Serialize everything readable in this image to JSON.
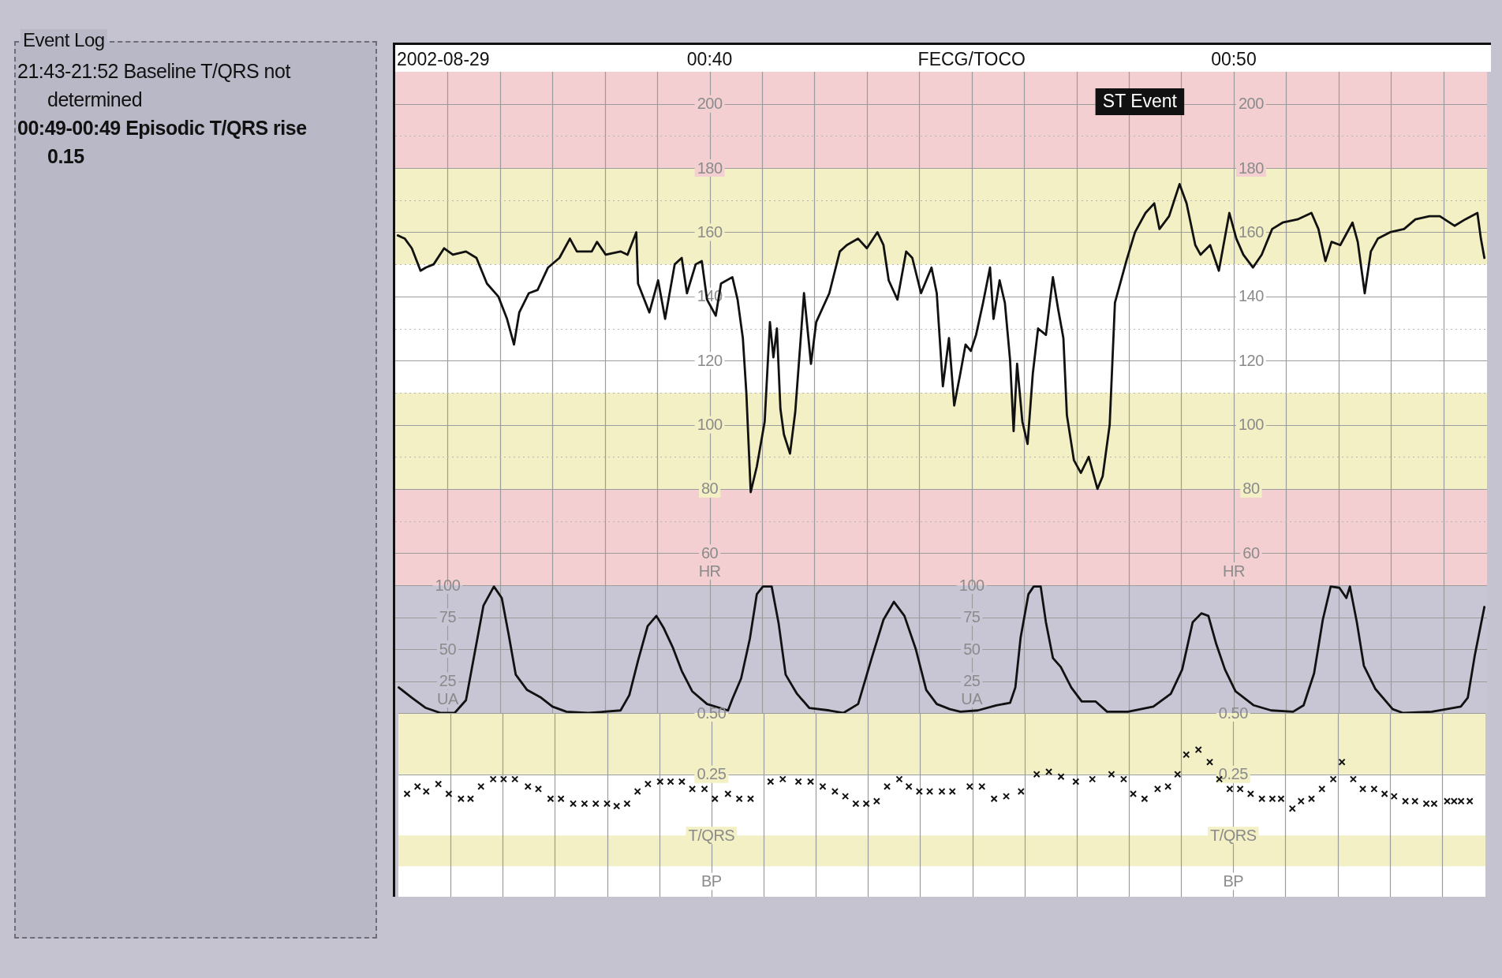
{
  "chart_data": [
    {
      "type": "other",
      "title": "Event Log",
      "annotations": [
        "21:43-21:52 Baseline T/QRS not determined",
        "00:49-00:49 Episodic T/QRS rise 0.15"
      ]
    },
    {
      "type": "line",
      "title": "FECG/TOCO",
      "ylabel": "HR",
      "annotations": [
        "2002-08-29",
        "ST Event"
      ],
      "xlim": [
        "2002-08-29T00:34",
        "2002-08-29T00:54:50"
      ],
      "xticks": [
        {
          "value": "2002-08-29T00:35",
          "label": null
        },
        {
          "value": "2002-08-29T00:36",
          "label": null
        },
        {
          "value": "2002-08-29T00:37",
          "label": null
        },
        {
          "value": "2002-08-29T00:38",
          "label": null
        },
        {
          "value": "2002-08-29T00:39",
          "label": null
        },
        {
          "value": "2002-08-29T00:40",
          "label": "00:40"
        },
        {
          "value": "2002-08-29T00:41",
          "label": null
        },
        {
          "value": "2002-08-29T00:42",
          "label": null
        },
        {
          "value": "2002-08-29T00:43",
          "label": null
        },
        {
          "value": "2002-08-29T00:44",
          "label": null
        },
        {
          "value": "2002-08-29T00:45",
          "label": null
        },
        {
          "value": "2002-08-29T00:46",
          "label": null
        },
        {
          "value": "2002-08-29T00:47",
          "label": null
        },
        {
          "value": "2002-08-29T00:48",
          "label": null
        },
        {
          "value": "2002-08-29T00:49",
          "label": null
        },
        {
          "value": "2002-08-29T00:50",
          "label": "00:50"
        },
        {
          "value": "2002-08-29T00:51",
          "label": null
        },
        {
          "value": "2002-08-29T00:52",
          "label": null
        },
        {
          "value": "2002-08-29T00:53",
          "label": null
        },
        {
          "value": "2002-08-29T00:54",
          "label": null
        }
      ],
      "ylim": [
        50,
        210
      ],
      "yticks": [
        60,
        {
          "value": 70,
          "label": null
        },
        80,
        {
          "value": 90,
          "label": null
        },
        100,
        {
          "value": 110,
          "label": null
        },
        120,
        {
          "value": 130,
          "label": null
        },
        140,
        {
          "value": 150,
          "label": null
        },
        160,
        {
          "value": 170,
          "label": null
        },
        180,
        {
          "value": 190,
          "label": null
        },
        200
      ],
      "y2lim": [
        50,
        210
      ],
      "y2ticks": [
        60,
        80,
        100,
        120,
        140,
        160,
        180,
        200
      ],
      "bands": [
        {
          "axis": "y",
          "from": 180,
          "to": 210,
          "color": "#f3cfd2"
        },
        {
          "axis": "y",
          "from": 150,
          "to": 180,
          "color": "#f2f0c4"
        },
        {
          "axis": "y",
          "from": 80,
          "to": 110,
          "color": "#f2f0c4"
        },
        {
          "axis": "y",
          "from": 50,
          "to": 80,
          "color": "#f3cfd2"
        }
      ],
      "grid": true,
      "series": [
        {
          "color": "#111111",
          "x": [
            "2002-08-29T00:34:03",
            "2002-08-29T00:34:11",
            "2002-08-29T00:34:19",
            "2002-08-29T00:34:29",
            "2002-08-29T00:34:35",
            "2002-08-29T00:34:44",
            "2002-08-29T00:34:56",
            "2002-08-29T00:35:06",
            "2002-08-29T00:35:21",
            "2002-08-29T00:35:33",
            "2002-08-29T00:35:45",
            "2002-08-29T00:35:58",
            "2002-08-29T00:36:08",
            "2002-08-29T00:36:16",
            "2002-08-29T00:36:22",
            "2002-08-29T00:36:33",
            "2002-08-29T00:36:43",
            "2002-08-29T00:36:55",
            "2002-08-29T00:37:08",
            "2002-08-29T00:37:20",
            "2002-08-29T00:37:28",
            "2002-08-29T00:37:45",
            "2002-08-29T00:37:51",
            "2002-08-29T00:38:01",
            "2002-08-29T00:38:18",
            "2002-08-29T00:38:26",
            "2002-08-29T00:38:36",
            "2002-08-29T00:38:38",
            "2002-08-29T00:38:51",
            "2002-08-29T00:39:01",
            "2002-08-29T00:39:09",
            "2002-08-29T00:39:20",
            "2002-08-29T00:39:28",
            "2002-08-29T00:39:34",
            "2002-08-29T00:39:44",
            "2002-08-29T00:39:51",
            "2002-08-29T00:39:57",
            "2002-08-29T00:40:07",
            "2002-08-29T00:40:13",
            "2002-08-29T00:40:26",
            "2002-08-29T00:40:32",
            "2002-08-29T00:40:38",
            "2002-08-29T00:40:42",
            "2002-08-29T00:40:47",
            "2002-08-29T00:40:54",
            "2002-08-29T00:41:03",
            "2002-08-29T00:41:09",
            "2002-08-29T00:41:13",
            "2002-08-29T00:41:17",
            "2002-08-29T00:41:21",
            "2002-08-29T00:41:25",
            "2002-08-29T00:41:32",
            "2002-08-29T00:41:38",
            "2002-08-29T00:41:44",
            "2002-08-29T00:41:48",
            "2002-08-29T00:41:56",
            "2002-08-29T00:42:02",
            "2002-08-29T00:42:17",
            "2002-08-29T00:42:29",
            "2002-08-29T00:42:37",
            "2002-08-29T00:42:50",
            "2002-08-29T00:43:00",
            "2002-08-29T00:43:12",
            "2002-08-29T00:43:19",
            "2002-08-29T00:43:25",
            "2002-08-29T00:43:35",
            "2002-08-29T00:43:45",
            "2002-08-29T00:43:52",
            "2002-08-29T00:44:02",
            "2002-08-29T00:44:14",
            "2002-08-29T00:44:20",
            "2002-08-29T00:44:27",
            "2002-08-29T00:44:34",
            "2002-08-29T00:44:40",
            "2002-08-29T00:44:47",
            "2002-08-29T00:44:53",
            "2002-08-29T00:44:59",
            "2002-08-29T00:45:05",
            "2002-08-29T00:45:13",
            "2002-08-29T00:45:21",
            "2002-08-29T00:45:25",
            "2002-08-29T00:45:32",
            "2002-08-29T00:45:38",
            "2002-08-29T00:45:44",
            "2002-08-29T00:45:48",
            "2002-08-29T00:45:52",
            "2002-08-29T00:45:58",
            "2002-08-29T00:46:04",
            "2002-08-29T00:46:10",
            "2002-08-29T00:46:16",
            "2002-08-29T00:46:25",
            "2002-08-29T00:46:33",
            "2002-08-29T00:46:39",
            "2002-08-29T00:46:45",
            "2002-08-29T00:46:49",
            "2002-08-29T00:46:57",
            "2002-08-29T00:47:05",
            "2002-08-29T00:47:14",
            "2002-08-29T00:47:24",
            "2002-08-29T00:47:30",
            "2002-08-29T00:47:38",
            "2002-08-29T00:47:44",
            "2002-08-29T00:47:57",
            "2002-08-29T00:48:07",
            "2002-08-29T00:48:19",
            "2002-08-29T00:48:29",
            "2002-08-29T00:48:35",
            "2002-08-29T00:48:46",
            "2002-08-29T00:48:58",
            "2002-08-29T00:49:06",
            "2002-08-29T00:49:16",
            "2002-08-29T00:49:22",
            "2002-08-29T00:49:33",
            "2002-08-29T00:49:43",
            "2002-08-29T00:49:55",
            "2002-08-29T00:50:03",
            "2002-08-29T00:50:11",
            "2002-08-29T00:50:22",
            "2002-08-29T00:50:32",
            "2002-08-29T00:50:44",
            "2002-08-29T00:50:56",
            "2002-08-29T00:51:13",
            "2002-08-29T00:51:29",
            "2002-08-29T00:51:37",
            "2002-08-29T00:51:45",
            "2002-08-29T00:51:52",
            "2002-08-29T00:52:02",
            "2002-08-29T00:52:16",
            "2002-08-29T00:52:22",
            "2002-08-29T00:52:30",
            "2002-08-29T00:52:37",
            "2002-08-29T00:52:45",
            "2002-08-29T00:52:59",
            "2002-08-29T00:53:15",
            "2002-08-29T00:53:28",
            "2002-08-29T00:53:44",
            "2002-08-29T00:53:56",
            "2002-08-29T00:54:13",
            "2002-08-29T00:54:25",
            "2002-08-29T00:54:39",
            "2002-08-29T00:54:43",
            "2002-08-29T00:54:47"
          ],
          "values": [
            159,
            158,
            155,
            148,
            149,
            150,
            155,
            153,
            154,
            152,
            144,
            140,
            133,
            125,
            135,
            141,
            142,
            149,
            152,
            158,
            154,
            154,
            157,
            153,
            154,
            153,
            160,
            144,
            135,
            145,
            133,
            150,
            152,
            141,
            150,
            151,
            139,
            134,
            144,
            146,
            139,
            127,
            110,
            79,
            87,
            101,
            132,
            121,
            130,
            105,
            97,
            91,
            104,
            126,
            141,
            119,
            132,
            141,
            154,
            156,
            158,
            155,
            160,
            156,
            145,
            139,
            154,
            152,
            141,
            149,
            141,
            112,
            127,
            106,
            116,
            125,
            123,
            128,
            138,
            149,
            133,
            145,
            138,
            120,
            98,
            119,
            101,
            94,
            116,
            130,
            128,
            146,
            136,
            127,
            103,
            89,
            85,
            90,
            80,
            84,
            100,
            138,
            151,
            160,
            166,
            169,
            161,
            165,
            175,
            169,
            156,
            153,
            156,
            148,
            166,
            158,
            153,
            149,
            153,
            161,
            163,
            164,
            166,
            161,
            151,
            157,
            156,
            163,
            157,
            141,
            154,
            158,
            160,
            161,
            164,
            165,
            165,
            162,
            164,
            166,
            158,
            152
          ]
        }
      ]
    },
    {
      "type": "line",
      "ylabel": "UA",
      "tick_labels": "y",
      "xlim": [
        "2002-08-29T00:34",
        "2002-08-29T00:54:50"
      ],
      "xticks": [
        {
          "value": "2002-08-29T00:35",
          "label": null
        },
        {
          "value": "2002-08-29T00:36",
          "label": null
        },
        {
          "value": "2002-08-29T00:37",
          "label": null
        },
        {
          "value": "2002-08-29T00:38",
          "label": null
        },
        {
          "value": "2002-08-29T00:39",
          "label": null
        },
        {
          "value": "2002-08-29T00:40",
          "label": null
        },
        {
          "value": "2002-08-29T00:41",
          "label": null
        },
        {
          "value": "2002-08-29T00:42",
          "label": null
        },
        {
          "value": "2002-08-29T00:43",
          "label": null
        },
        {
          "value": "2002-08-29T00:44",
          "label": null
        },
        {
          "value": "2002-08-29T00:45",
          "label": null
        },
        {
          "value": "2002-08-29T00:46",
          "label": null
        },
        {
          "value": "2002-08-29T00:47",
          "label": null
        },
        {
          "value": "2002-08-29T00:48",
          "label": null
        },
        {
          "value": "2002-08-29T00:49",
          "label": null
        },
        {
          "value": "2002-08-29T00:50",
          "label": null
        },
        {
          "value": "2002-08-29T00:51",
          "label": null
        },
        {
          "value": "2002-08-29T00:52",
          "label": null
        },
        {
          "value": "2002-08-29T00:53",
          "label": null
        },
        {
          "value": "2002-08-29T00:54",
          "label": null
        }
      ],
      "ylim": [
        0,
        100
      ],
      "yticks": [
        25,
        50,
        75,
        100
      ],
      "y2lim": [
        0,
        100
      ],
      "y2ticks": [
        25,
        50,
        75,
        100
      ],
      "bands": [
        {
          "axis": "y",
          "from": 0,
          "to": 100,
          "color": "#c8c5d5"
        }
      ],
      "grid": true,
      "series": [
        {
          "color": "#111111",
          "x": [
            "2002-08-29T00:34:04",
            "2002-08-29T00:34:19",
            "2002-08-29T00:34:35",
            "2002-08-29T00:34:52",
            "2002-08-29T00:35:08",
            "2002-08-29T00:35:21",
            "2002-08-29T00:35:31",
            "2002-08-29T00:35:41",
            "2002-08-29T00:35:53",
            "2002-08-29T00:36:02",
            "2002-08-29T00:36:10",
            "2002-08-29T00:36:18",
            "2002-08-29T00:36:31",
            "2002-08-29T00:36:47",
            "2002-08-29T00:37:00",
            "2002-08-29T00:37:16",
            "2002-08-29T00:37:41",
            "2002-08-29T00:38:18",
            "2002-08-29T00:38:28",
            "2002-08-29T00:38:38",
            "2002-08-29T00:38:49",
            "2002-08-29T00:38:59",
            "2002-08-29T00:39:07",
            "2002-08-29T00:39:18",
            "2002-08-29T00:39:28",
            "2002-08-29T00:39:40",
            "2002-08-29T00:39:57",
            "2002-08-29T00:40:21",
            "2002-08-29T00:40:26",
            "2002-08-29T00:40:36",
            "2002-08-29T00:40:46",
            "2002-08-29T00:40:54",
            "2002-08-29T00:41:01",
            "2002-08-29T00:41:11",
            "2002-08-29T00:41:19",
            "2002-08-29T00:41:27",
            "2002-08-29T00:41:40",
            "2002-08-29T00:41:54",
            "2002-08-29T00:42:17",
            "2002-08-29T00:42:33",
            "2002-08-29T00:42:50",
            "2002-08-29T00:43:06",
            "2002-08-29T00:43:19",
            "2002-08-29T00:43:31",
            "2002-08-29T00:43:43",
            "2002-08-29T00:43:56",
            "2002-08-29T00:44:08",
            "2002-08-29T00:44:20",
            "2002-08-29T00:44:35",
            "2002-08-29T00:44:47",
            "2002-08-29T00:45:07",
            "2002-08-29T00:45:28",
            "2002-08-29T00:45:44",
            "2002-08-29T00:45:50",
            "2002-08-29T00:45:56",
            "2002-08-29T00:46:05",
            "2002-08-29T00:46:11",
            "2002-08-29T00:46:19",
            "2002-08-29T00:46:25",
            "2002-08-29T00:46:33",
            "2002-08-29T00:46:42",
            "2002-08-29T00:46:54",
            "2002-08-29T00:47:06",
            "2002-08-29T00:47:22",
            "2002-08-29T00:47:35",
            "2002-08-29T00:47:59",
            "2002-08-29T00:48:28",
            "2002-08-29T00:48:48",
            "2002-08-29T00:49:01",
            "2002-08-29T00:49:13",
            "2002-08-29T00:49:23",
            "2002-08-29T00:49:31",
            "2002-08-29T00:49:40",
            "2002-08-29T00:49:50",
            "2002-08-29T00:50:02",
            "2002-08-29T00:50:23",
            "2002-08-29T00:50:43",
            "2002-08-29T00:51:08",
            "2002-08-29T00:51:20",
            "2002-08-29T00:51:32",
            "2002-08-29T00:51:42",
            "2002-08-29T00:51:51",
            "2002-08-29T00:52:01",
            "2002-08-29T00:52:09",
            "2002-08-29T00:52:13",
            "2002-08-29T00:52:21",
            "2002-08-29T00:52:29",
            "2002-08-29T00:52:42",
            "2002-08-29T00:53:02",
            "2002-08-29T00:53:14",
            "2002-08-29T00:53:47",
            "2002-08-29T00:54:20",
            "2002-08-29T00:54:28",
            "2002-08-29T00:54:36",
            "2002-08-29T00:54:47"
          ],
          "values": [
            20,
            12,
            4,
            0,
            0,
            10,
            47,
            84,
            99,
            90,
            61,
            30,
            18,
            12,
            5,
            1,
            0,
            2,
            14,
            41,
            68,
            76,
            67,
            51,
            33,
            17,
            7,
            2,
            11,
            27,
            58,
            93,
            99,
            99,
            70,
            30,
            15,
            4,
            2,
            0,
            7,
            44,
            73,
            87,
            76,
            50,
            18,
            7,
            3,
            1,
            2,
            6,
            8,
            20,
            59,
            93,
            99,
            99,
            71,
            43,
            36,
            20,
            9,
            9,
            1,
            1,
            5,
            15,
            34,
            71,
            78,
            76,
            54,
            34,
            17,
            6,
            2,
            1,
            6,
            31,
            73,
            99,
            98,
            90,
            99,
            71,
            37,
            19,
            3,
            0,
            1,
            5,
            12,
            45,
            83
          ]
        }
      ]
    },
    {
      "type": "scatter",
      "ylabel": "T/QRS",
      "annotations": [
        "BP"
      ],
      "tick_labels": "y",
      "marker": "cross",
      "color": "#111111",
      "xlim": [
        "2002-08-29T00:34",
        "2002-08-29T00:54:50"
      ],
      "xticks": [
        {
          "value": "2002-08-29T00:35",
          "label": null
        },
        {
          "value": "2002-08-29T00:36",
          "label": null
        },
        {
          "value": "2002-08-29T00:37",
          "label": null
        },
        {
          "value": "2002-08-29T00:38",
          "label": null
        },
        {
          "value": "2002-08-29T00:39",
          "label": null
        },
        {
          "value": "2002-08-29T00:40",
          "label": null
        },
        {
          "value": "2002-08-29T00:41",
          "label": null
        },
        {
          "value": "2002-08-29T00:42",
          "label": null
        },
        {
          "value": "2002-08-29T00:43",
          "label": null
        },
        {
          "value": "2002-08-29T00:44",
          "label": null
        },
        {
          "value": "2002-08-29T00:45",
          "label": null
        },
        {
          "value": "2002-08-29T00:46",
          "label": null
        },
        {
          "value": "2002-08-29T00:47",
          "label": null
        },
        {
          "value": "2002-08-29T00:48",
          "label": null
        },
        {
          "value": "2002-08-29T00:49",
          "label": null
        },
        {
          "value": "2002-08-29T00:50",
          "label": null
        },
        {
          "value": "2002-08-29T00:51",
          "label": null
        },
        {
          "value": "2002-08-29T00:52",
          "label": null
        },
        {
          "value": "2002-08-29T00:53",
          "label": null
        },
        {
          "value": "2002-08-29T00:54",
          "label": null
        }
      ],
      "ylim": [
        -0.25,
        0.5
      ],
      "yticks": [
        0.25,
        {
          "value": 0.5,
          "label": "0.50"
        }
      ],
      "y2lim": [
        -0.25,
        0.5
      ],
      "y2ticks": [
        0.25,
        {
          "value": 0.5,
          "label": "0.50"
        }
      ],
      "bands": [
        {
          "axis": "y",
          "from": 0.25,
          "to": 0.5,
          "color": "#f2f0c4"
        },
        {
          "axis": "y",
          "from": -0.125,
          "to": 0,
          "color": "#f2f0c4"
        }
      ],
      "grid": true,
      "x": [
        "2002-08-29T00:34:10",
        "2002-08-29T00:34:22",
        "2002-08-29T00:34:32",
        "2002-08-29T00:34:46",
        "2002-08-29T00:34:58",
        "2002-08-29T00:35:12",
        "2002-08-29T00:35:23",
        "2002-08-29T00:35:35",
        "2002-08-29T00:35:49",
        "2002-08-29T00:36:01",
        "2002-08-29T00:36:14",
        "2002-08-29T00:36:29",
        "2002-08-29T00:36:41",
        "2002-08-29T00:36:55",
        "2002-08-29T00:37:07",
        "2002-08-29T00:37:21",
        "2002-08-29T00:37:34",
        "2002-08-29T00:37:47",
        "2002-08-29T00:38:00",
        "2002-08-29T00:38:11",
        "2002-08-29T00:38:23",
        "2002-08-29T00:38:35",
        "2002-08-29T00:38:47",
        "2002-08-29T00:39:01",
        "2002-08-29T00:39:13",
        "2002-08-29T00:39:26",
        "2002-08-29T00:39:38",
        "2002-08-29T00:39:52",
        "2002-08-29T00:40:04",
        "2002-08-29T00:40:19",
        "2002-08-29T00:40:32",
        "2002-08-29T00:40:45",
        "2002-08-29T00:41:08",
        "2002-08-29T00:41:22",
        "2002-08-29T00:41:40",
        "2002-08-29T00:41:54",
        "2002-08-29T00:42:08",
        "2002-08-29T00:42:22",
        "2002-08-29T00:42:34",
        "2002-08-29T00:42:46",
        "2002-08-29T00:42:58",
        "2002-08-29T00:43:10",
        "2002-08-29T00:43:22",
        "2002-08-29T00:43:36",
        "2002-08-29T00:43:47",
        "2002-08-29T00:43:59",
        "2002-08-29T00:44:11",
        "2002-08-29T00:44:25",
        "2002-08-29T00:44:37",
        "2002-08-29T00:44:57",
        "2002-08-29T00:45:11",
        "2002-08-29T00:45:25",
        "2002-08-29T00:45:39",
        "2002-08-29T00:45:56",
        "2002-08-29T00:46:14",
        "2002-08-29T00:46:28",
        "2002-08-29T00:46:42",
        "2002-08-29T00:46:59",
        "2002-08-29T00:47:18",
        "2002-08-29T00:47:40",
        "2002-08-29T00:47:54",
        "2002-08-29T00:48:05",
        "2002-08-29T00:48:18",
        "2002-08-29T00:48:33",
        "2002-08-29T00:48:45",
        "2002-08-29T00:48:56",
        "2002-08-29T00:49:06",
        "2002-08-29T00:49:20",
        "2002-08-29T00:49:33",
        "2002-08-29T00:49:44",
        "2002-08-29T00:49:56",
        "2002-08-29T00:50:08",
        "2002-08-29T00:50:20",
        "2002-08-29T00:50:33",
        "2002-08-29T00:50:45",
        "2002-08-29T00:50:55",
        "2002-08-29T00:51:08",
        "2002-08-29T00:51:18",
        "2002-08-29T00:51:30",
        "2002-08-29T00:51:42",
        "2002-08-29T00:51:55",
        "2002-08-29T00:52:05",
        "2002-08-29T00:52:18",
        "2002-08-29T00:52:29",
        "2002-08-29T00:52:42",
        "2002-08-29T00:52:54",
        "2002-08-29T00:53:05",
        "2002-08-29T00:53:18",
        "2002-08-29T00:53:29",
        "2002-08-29T00:53:42",
        "2002-08-29T00:53:51",
        "2002-08-29T00:54:06",
        "2002-08-29T00:54:14",
        "2002-08-29T00:54:22",
        "2002-08-29T00:54:32"
      ],
      "values": [
        0.17,
        0.2,
        0.18,
        0.21,
        0.17,
        0.15,
        0.15,
        0.2,
        0.23,
        0.23,
        0.23,
        0.2,
        0.19,
        0.15,
        0.15,
        0.13,
        0.13,
        0.13,
        0.13,
        0.12,
        0.13,
        0.18,
        0.21,
        0.22,
        0.22,
        0.22,
        0.19,
        0.19,
        0.15,
        0.17,
        0.15,
        0.15,
        0.22,
        0.23,
        0.22,
        0.22,
        0.2,
        0.18,
        0.16,
        0.13,
        0.13,
        0.14,
        0.2,
        0.23,
        0.2,
        0.18,
        0.18,
        0.18,
        0.18,
        0.2,
        0.2,
        0.15,
        0.16,
        0.18,
        0.25,
        0.26,
        0.24,
        0.22,
        0.23,
        0.25,
        0.23,
        0.17,
        0.15,
        0.19,
        0.2,
        0.25,
        0.33,
        0.35,
        0.3,
        0.23,
        0.19,
        0.19,
        0.17,
        0.15,
        0.15,
        0.15,
        0.11,
        0.14,
        0.15,
        0.19,
        0.23,
        0.3,
        0.23,
        0.19,
        0.19,
        0.17,
        0.16,
        0.14,
        0.14,
        0.13,
        0.13,
        0.14,
        0.14,
        0.14,
        0.14
      ]
    }
  ]
}
